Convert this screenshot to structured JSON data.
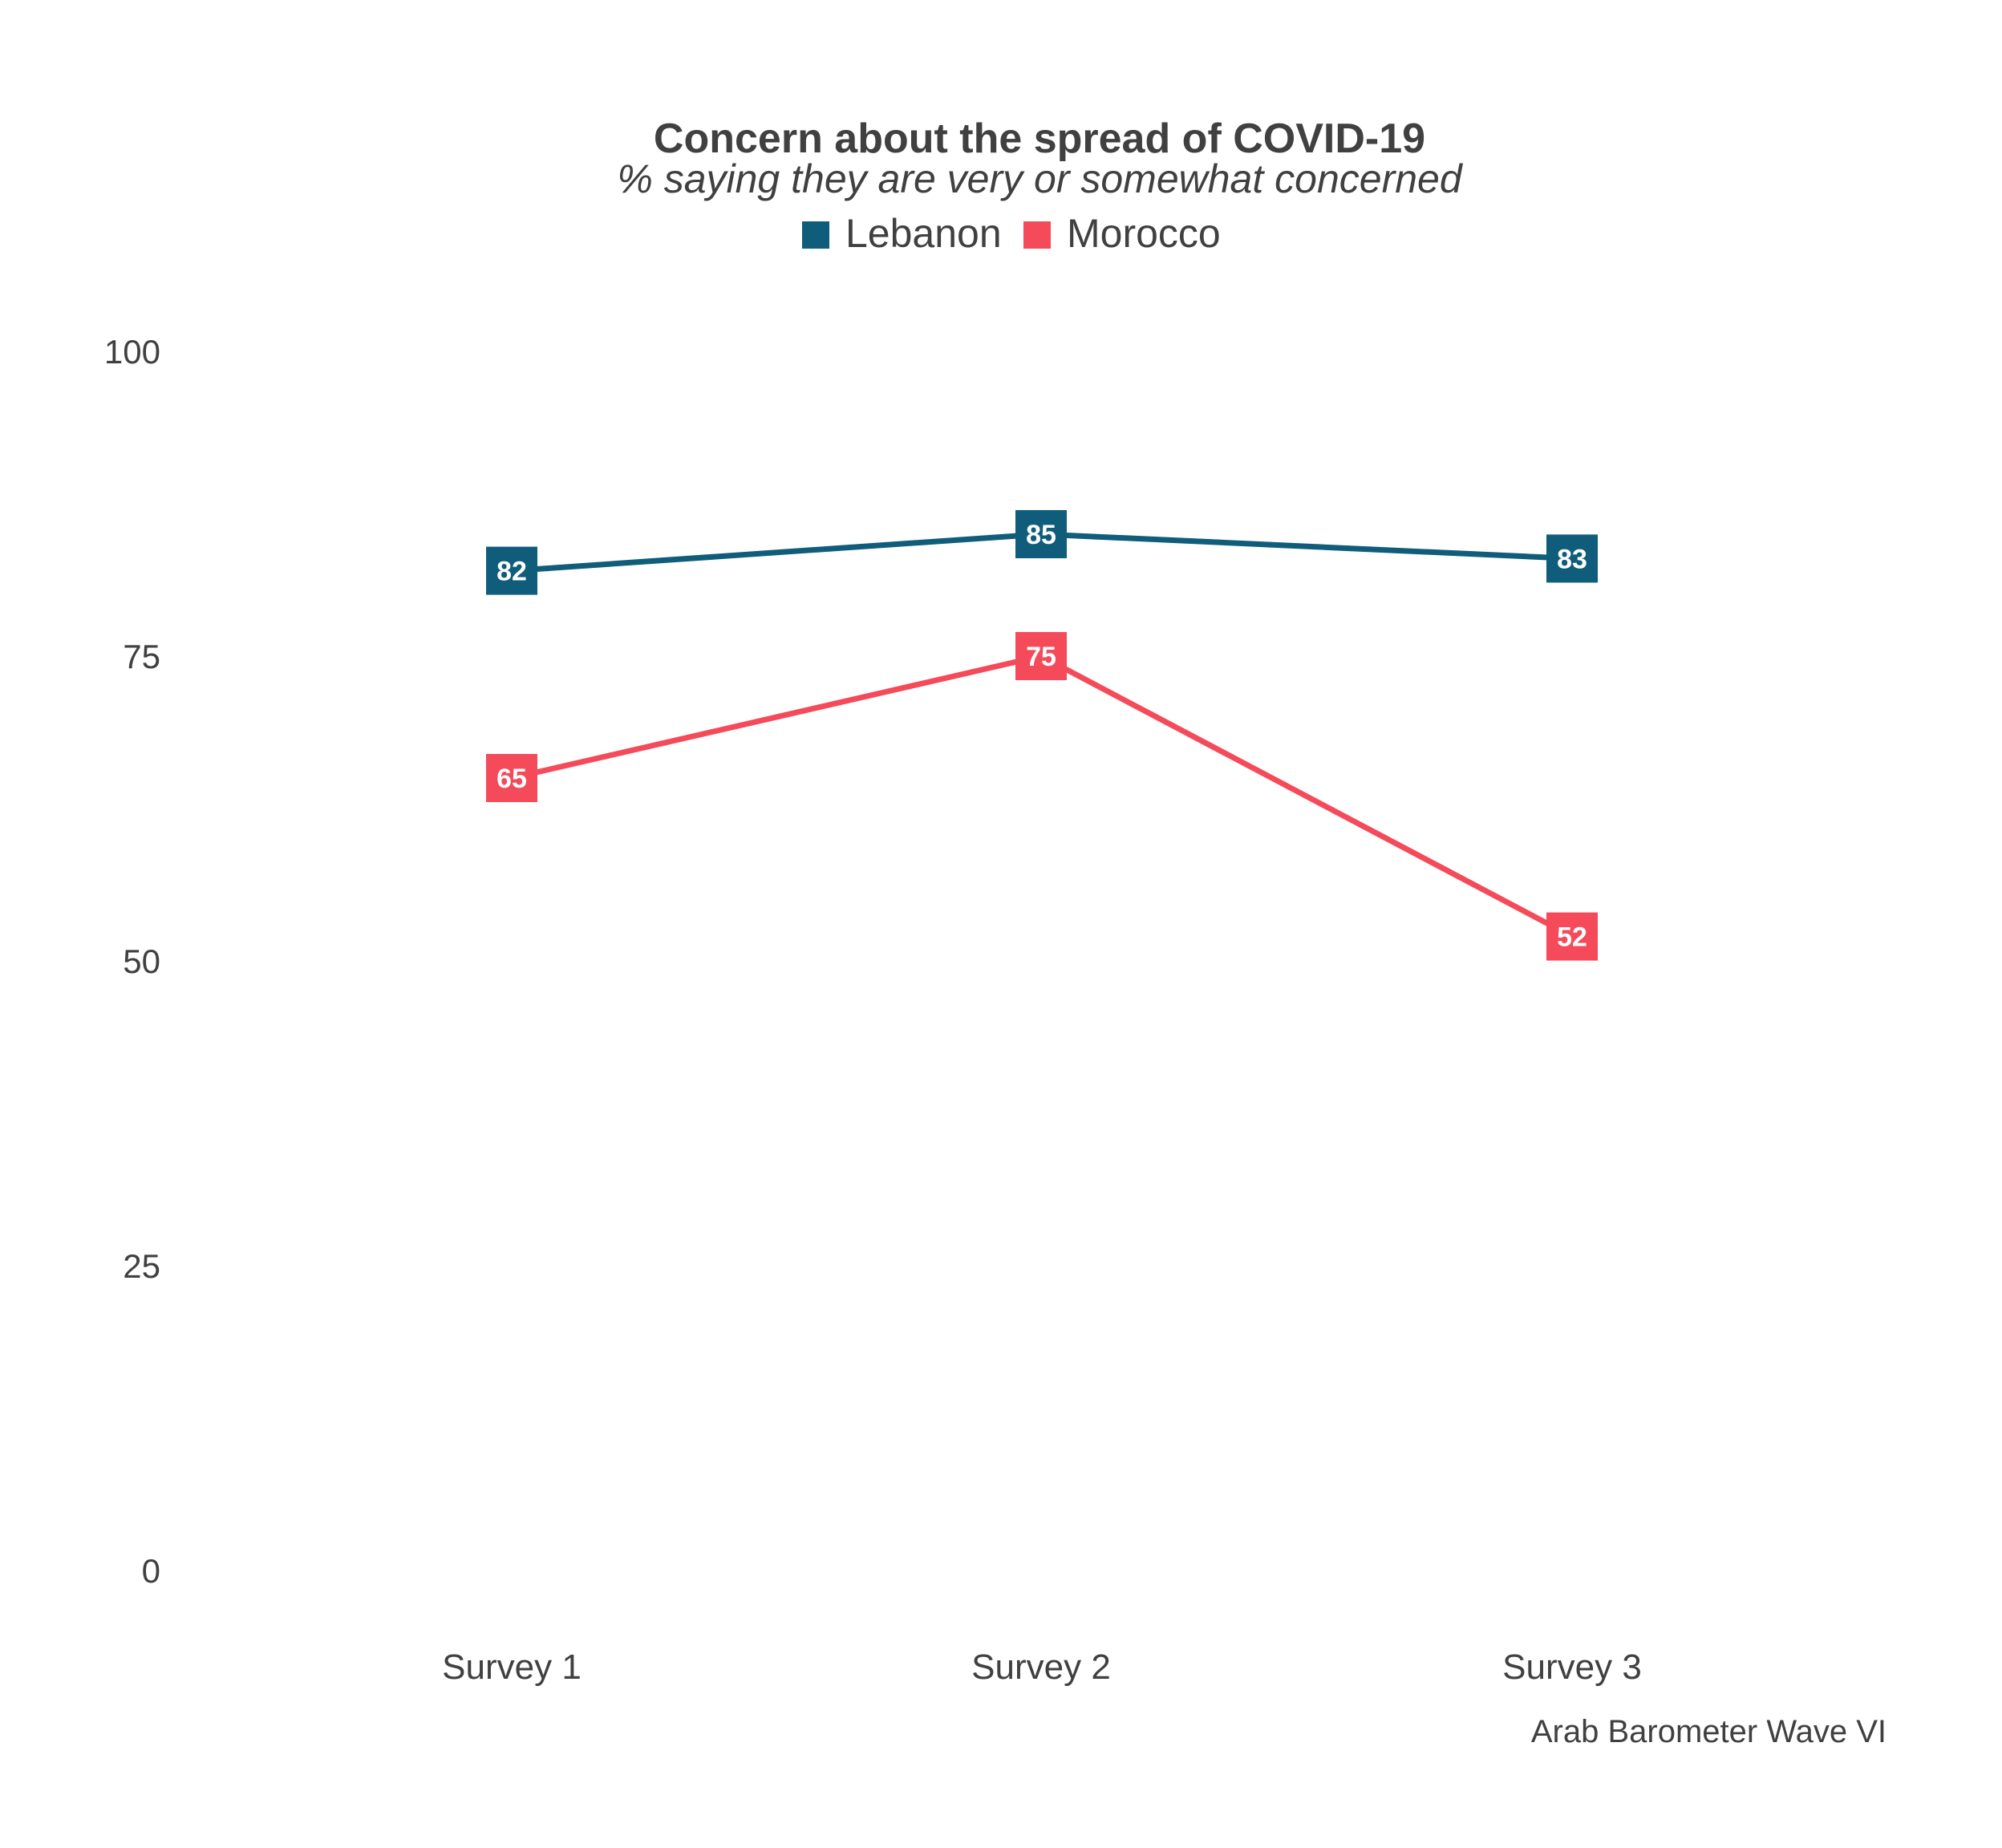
{
  "chart_data": {
    "type": "line",
    "title": "Concern about the spread of COVID-19",
    "subtitle": "% saying they are very or somewhat concerned",
    "caption": "Arab Barometer Wave VI",
    "categories": [
      "Survey 1",
      "Survey 2",
      "Survey 3"
    ],
    "ylim": [
      0,
      100
    ],
    "yticks": [
      "0",
      "25",
      "50",
      "75",
      "100"
    ],
    "grid": false,
    "legend_position": "top-center",
    "series": [
      {
        "name": "Lebanon",
        "color": "#0f5d7a",
        "values": [
          82,
          85,
          83
        ]
      },
      {
        "name": "Morocco",
        "color": "#f44a5a",
        "values": [
          65,
          75,
          52
        ]
      }
    ]
  }
}
